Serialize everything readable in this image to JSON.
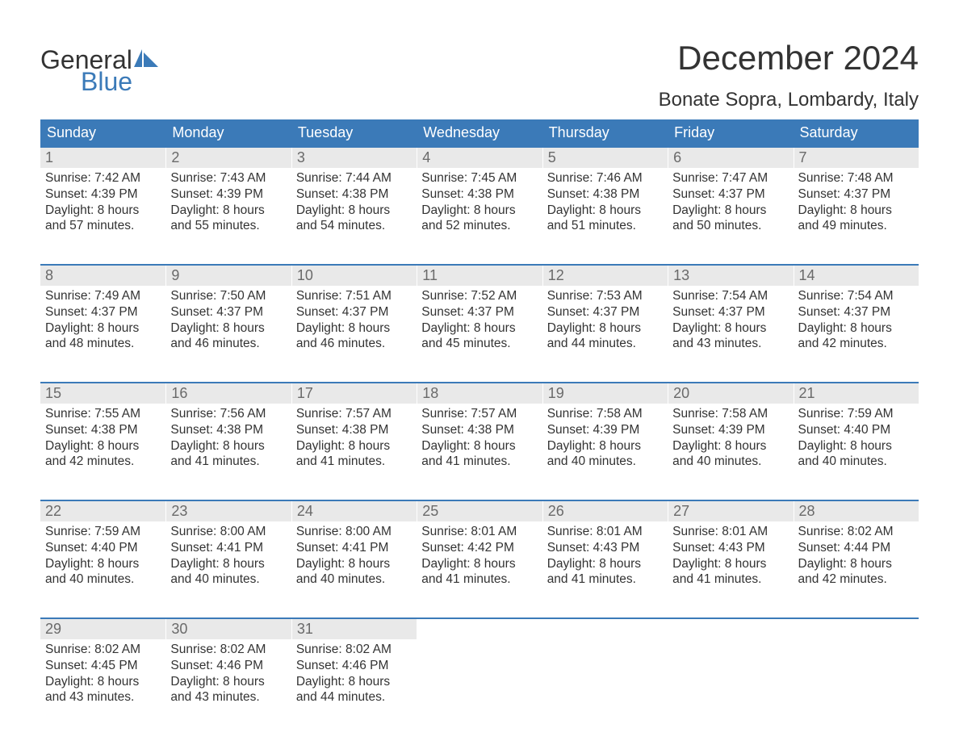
{
  "logo": {
    "word1": "General",
    "word2": "Blue",
    "sail_color": "#3b7ab8"
  },
  "title": "December 2024",
  "location": "Bonate Sopra, Lombardy, Italy",
  "colors": {
    "header_bg": "#3b7ab8",
    "daynum_bg": "#e9e9e9",
    "daynum_text": "#6a6a6a",
    "body_text": "#333333",
    "week_border": "#3b7ab8"
  },
  "weekdays": [
    "Sunday",
    "Monday",
    "Tuesday",
    "Wednesday",
    "Thursday",
    "Friday",
    "Saturday"
  ],
  "weeks": [
    [
      {
        "n": "1",
        "sunrise": "Sunrise: 7:42 AM",
        "sunset": "Sunset: 4:39 PM",
        "d1": "Daylight: 8 hours",
        "d2": "and 57 minutes."
      },
      {
        "n": "2",
        "sunrise": "Sunrise: 7:43 AM",
        "sunset": "Sunset: 4:39 PM",
        "d1": "Daylight: 8 hours",
        "d2": "and 55 minutes."
      },
      {
        "n": "3",
        "sunrise": "Sunrise: 7:44 AM",
        "sunset": "Sunset: 4:38 PM",
        "d1": "Daylight: 8 hours",
        "d2": "and 54 minutes."
      },
      {
        "n": "4",
        "sunrise": "Sunrise: 7:45 AM",
        "sunset": "Sunset: 4:38 PM",
        "d1": "Daylight: 8 hours",
        "d2": "and 52 minutes."
      },
      {
        "n": "5",
        "sunrise": "Sunrise: 7:46 AM",
        "sunset": "Sunset: 4:38 PM",
        "d1": "Daylight: 8 hours",
        "d2": "and 51 minutes."
      },
      {
        "n": "6",
        "sunrise": "Sunrise: 7:47 AM",
        "sunset": "Sunset: 4:37 PM",
        "d1": "Daylight: 8 hours",
        "d2": "and 50 minutes."
      },
      {
        "n": "7",
        "sunrise": "Sunrise: 7:48 AM",
        "sunset": "Sunset: 4:37 PM",
        "d1": "Daylight: 8 hours",
        "d2": "and 49 minutes."
      }
    ],
    [
      {
        "n": "8",
        "sunrise": "Sunrise: 7:49 AM",
        "sunset": "Sunset: 4:37 PM",
        "d1": "Daylight: 8 hours",
        "d2": "and 48 minutes."
      },
      {
        "n": "9",
        "sunrise": "Sunrise: 7:50 AM",
        "sunset": "Sunset: 4:37 PM",
        "d1": "Daylight: 8 hours",
        "d2": "and 46 minutes."
      },
      {
        "n": "10",
        "sunrise": "Sunrise: 7:51 AM",
        "sunset": "Sunset: 4:37 PM",
        "d1": "Daylight: 8 hours",
        "d2": "and 46 minutes."
      },
      {
        "n": "11",
        "sunrise": "Sunrise: 7:52 AM",
        "sunset": "Sunset: 4:37 PM",
        "d1": "Daylight: 8 hours",
        "d2": "and 45 minutes."
      },
      {
        "n": "12",
        "sunrise": "Sunrise: 7:53 AM",
        "sunset": "Sunset: 4:37 PM",
        "d1": "Daylight: 8 hours",
        "d2": "and 44 minutes."
      },
      {
        "n": "13",
        "sunrise": "Sunrise: 7:54 AM",
        "sunset": "Sunset: 4:37 PM",
        "d1": "Daylight: 8 hours",
        "d2": "and 43 minutes."
      },
      {
        "n": "14",
        "sunrise": "Sunrise: 7:54 AM",
        "sunset": "Sunset: 4:37 PM",
        "d1": "Daylight: 8 hours",
        "d2": "and 42 minutes."
      }
    ],
    [
      {
        "n": "15",
        "sunrise": "Sunrise: 7:55 AM",
        "sunset": "Sunset: 4:38 PM",
        "d1": "Daylight: 8 hours",
        "d2": "and 42 minutes."
      },
      {
        "n": "16",
        "sunrise": "Sunrise: 7:56 AM",
        "sunset": "Sunset: 4:38 PM",
        "d1": "Daylight: 8 hours",
        "d2": "and 41 minutes."
      },
      {
        "n": "17",
        "sunrise": "Sunrise: 7:57 AM",
        "sunset": "Sunset: 4:38 PM",
        "d1": "Daylight: 8 hours",
        "d2": "and 41 minutes."
      },
      {
        "n": "18",
        "sunrise": "Sunrise: 7:57 AM",
        "sunset": "Sunset: 4:38 PM",
        "d1": "Daylight: 8 hours",
        "d2": "and 41 minutes."
      },
      {
        "n": "19",
        "sunrise": "Sunrise: 7:58 AM",
        "sunset": "Sunset: 4:39 PM",
        "d1": "Daylight: 8 hours",
        "d2": "and 40 minutes."
      },
      {
        "n": "20",
        "sunrise": "Sunrise: 7:58 AM",
        "sunset": "Sunset: 4:39 PM",
        "d1": "Daylight: 8 hours",
        "d2": "and 40 minutes."
      },
      {
        "n": "21",
        "sunrise": "Sunrise: 7:59 AM",
        "sunset": "Sunset: 4:40 PM",
        "d1": "Daylight: 8 hours",
        "d2": "and 40 minutes."
      }
    ],
    [
      {
        "n": "22",
        "sunrise": "Sunrise: 7:59 AM",
        "sunset": "Sunset: 4:40 PM",
        "d1": "Daylight: 8 hours",
        "d2": "and 40 minutes."
      },
      {
        "n": "23",
        "sunrise": "Sunrise: 8:00 AM",
        "sunset": "Sunset: 4:41 PM",
        "d1": "Daylight: 8 hours",
        "d2": "and 40 minutes."
      },
      {
        "n": "24",
        "sunrise": "Sunrise: 8:00 AM",
        "sunset": "Sunset: 4:41 PM",
        "d1": "Daylight: 8 hours",
        "d2": "and 40 minutes."
      },
      {
        "n": "25",
        "sunrise": "Sunrise: 8:01 AM",
        "sunset": "Sunset: 4:42 PM",
        "d1": "Daylight: 8 hours",
        "d2": "and 41 minutes."
      },
      {
        "n": "26",
        "sunrise": "Sunrise: 8:01 AM",
        "sunset": "Sunset: 4:43 PM",
        "d1": "Daylight: 8 hours",
        "d2": "and 41 minutes."
      },
      {
        "n": "27",
        "sunrise": "Sunrise: 8:01 AM",
        "sunset": "Sunset: 4:43 PM",
        "d1": "Daylight: 8 hours",
        "d2": "and 41 minutes."
      },
      {
        "n": "28",
        "sunrise": "Sunrise: 8:02 AM",
        "sunset": "Sunset: 4:44 PM",
        "d1": "Daylight: 8 hours",
        "d2": "and 42 minutes."
      }
    ],
    [
      {
        "n": "29",
        "sunrise": "Sunrise: 8:02 AM",
        "sunset": "Sunset: 4:45 PM",
        "d1": "Daylight: 8 hours",
        "d2": "and 43 minutes."
      },
      {
        "n": "30",
        "sunrise": "Sunrise: 8:02 AM",
        "sunset": "Sunset: 4:46 PM",
        "d1": "Daylight: 8 hours",
        "d2": "and 43 minutes."
      },
      {
        "n": "31",
        "sunrise": "Sunrise: 8:02 AM",
        "sunset": "Sunset: 4:46 PM",
        "d1": "Daylight: 8 hours",
        "d2": "and 44 minutes."
      },
      {
        "empty": true
      },
      {
        "empty": true
      },
      {
        "empty": true
      },
      {
        "empty": true
      }
    ]
  ]
}
